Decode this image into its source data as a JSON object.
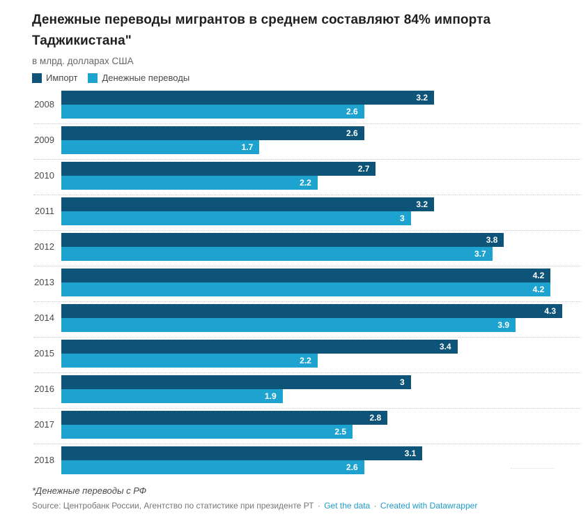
{
  "header": {
    "title": "Денежные переводы мигрантов в среднем составляют 84% импорта Таджикистана\"",
    "subtitle": "в млрд. долларах США"
  },
  "legend": [
    {
      "label": "Импорт",
      "color": "#0e5478"
    },
    {
      "label": "Денежные переводы",
      "color": "#1ea2cf"
    }
  ],
  "chart_data": {
    "type": "bar",
    "orientation": "horizontal",
    "title": "Денежные переводы мигрантов в среднем составляют 84% импорта Таджикистана\"",
    "subtitle": "в млрд. долларах США",
    "unit": "млрд. долларов США",
    "categories": [
      "2008",
      "2009",
      "2010",
      "2011",
      "2012",
      "2013",
      "2014",
      "2015",
      "2016",
      "2017",
      "2018"
    ],
    "series": [
      {
        "name": "Импорт",
        "color": "#0e5478",
        "values": [
          3.2,
          2.6,
          2.7,
          3.2,
          3.8,
          4.2,
          4.3,
          3.4,
          3,
          2.8,
          3.1
        ]
      },
      {
        "name": "Денежные переводы",
        "color": "#1ea2cf",
        "values": [
          2.6,
          1.7,
          2.2,
          3,
          3.7,
          4.2,
          3.9,
          2.2,
          1.9,
          2.5,
          2.6
        ]
      }
    ],
    "xmax": 4.3,
    "value_labels_inside_bars": true,
    "legend_position": "top",
    "grid": "dotted-row-separators"
  },
  "footer": {
    "footnote": "*Денежные переводы с РФ",
    "source_label": "Source:",
    "source": "Центробанк России, Агентство по статистике при президенте РТ",
    "separator": "·",
    "links": [
      "Get the data",
      "Created with Datawrapper"
    ],
    "link_color": "#1d9bc9"
  }
}
